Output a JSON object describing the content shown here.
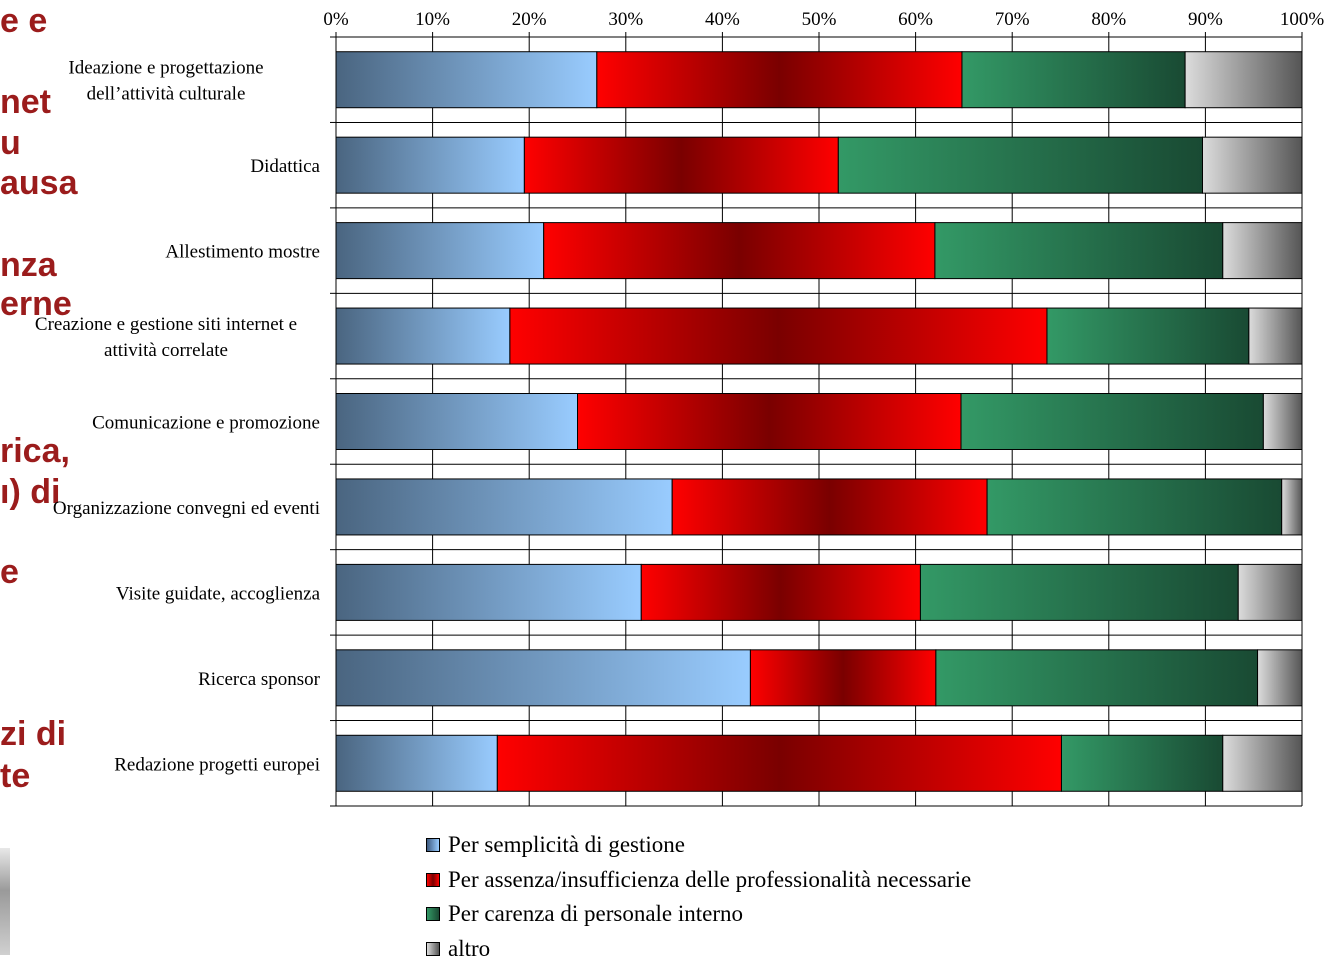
{
  "background_text": [
    "e e",
    "net",
    "u",
    "ausa",
    "nza",
    "erne",
    "rica,",
    "ı) di",
    "e",
    "zi di",
    "te"
  ],
  "chart_data": {
    "type": "bar",
    "orientation": "horizontal",
    "stacked": true,
    "percent": true,
    "categories": [
      [
        "Ideazione e progettazione",
        "dell’attività culturale"
      ],
      [
        "Didattica"
      ],
      [
        "Allestimento mostre"
      ],
      [
        "Creazione e gestione siti internet e",
        "attività correlate"
      ],
      [
        "Comunicazione e promozione"
      ],
      [
        "Organizzazione convegni ed eventi"
      ],
      [
        "Visite guidate, accoglienza"
      ],
      [
        "Ricerca sponsor"
      ],
      [
        "Redazione progetti europei"
      ]
    ],
    "series": [
      {
        "name": "Per semplicità di gestione",
        "color": "#99ccff",
        "values": [
          27,
          19.5,
          21.5,
          18,
          25,
          34.8,
          31.6,
          42.9,
          16.7
        ]
      },
      {
        "name": "Per assenza/insufficienza delle professionalità necessarie",
        "color": "#ff0000",
        "values": [
          37.8,
          32.5,
          40.5,
          55.6,
          39.7,
          32.6,
          28.9,
          19.2,
          58.4
        ]
      },
      {
        "name": "Per carenza di personale interno",
        "color": "#339966",
        "values": [
          23.1,
          37.7,
          29.8,
          20.9,
          31.3,
          30.5,
          32.9,
          33.3,
          16.7
        ]
      },
      {
        "name": "altro",
        "color": "#c0c0c0",
        "values": [
          12.1,
          10.3,
          8.2,
          5.5,
          4.0,
          2.1,
          6.6,
          4.6,
          8.2
        ]
      }
    ],
    "xticks": [
      "0%",
      "10%",
      "20%",
      "30%",
      "40%",
      "50%",
      "60%",
      "70%",
      "80%",
      "90%",
      "100%"
    ],
    "xlim": [
      0,
      100
    ],
    "grid": "vertical",
    "legend": "bottom"
  }
}
